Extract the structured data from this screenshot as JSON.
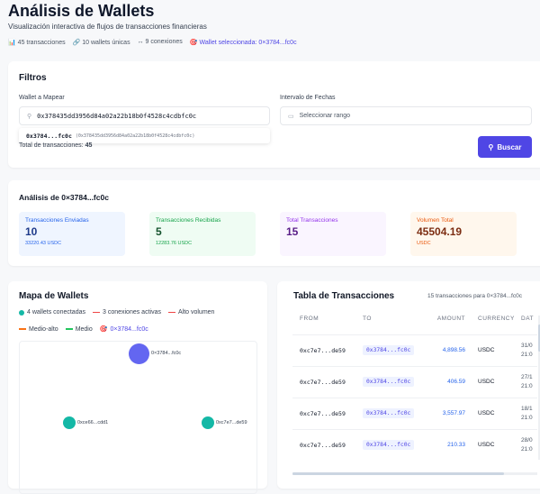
{
  "header": {
    "title": "Análisis de Wallets",
    "subtitle": "Visualización interactiva de flujos de transacciones financieras",
    "stats": [
      {
        "icon": "bar-chart-icon",
        "text": "45 transacciones"
      },
      {
        "icon": "link-icon",
        "text": "10 wallets únicas"
      },
      {
        "icon": "arrows-icon",
        "text": "9 conexiones"
      },
      {
        "icon": "target-icon",
        "text": "Wallet seleccionada: 0×3784...fc0c"
      }
    ]
  },
  "filters": {
    "title": "Filtros",
    "wallet_label": "Wallet a Mapear",
    "wallet_value": "0x378435dd3956d84a02a22b18b0f4528c4cdbfc0c",
    "suggestion_short": "0x3784...fc0c",
    "suggestion_full": "(0x378435dd3956d84a02a22b18b0f4528c4cdbfc0c)",
    "date_label": "Intervalo de Fechas",
    "date_placeholder": "Seleccionar rango",
    "total_label": "Total de transacciones:",
    "total_value": "45",
    "search_button": "Buscar"
  },
  "analysis": {
    "title": "Análisis de 0×3784...fc0c",
    "cards": [
      {
        "title": "Transacciones Enviadas",
        "value": "10",
        "sub": "33220.43 USDC"
      },
      {
        "title": "Transacciones Recibidas",
        "value": "5",
        "sub": "12283.76 USDC"
      },
      {
        "title": "Total Transacciones",
        "value": "15",
        "sub": ""
      },
      {
        "title": "Volumen Total",
        "value": "45504.19",
        "sub": "USDC"
      }
    ]
  },
  "map": {
    "title": "Mapa de Wallets",
    "legend": {
      "wallets": "4 wallets conectadas",
      "connections": "3 conexiones activas",
      "high": "Alto volumen",
      "midhigh": "Medio-alto",
      "mid": "Medio",
      "selected": "0×3784...fc0c"
    },
    "nodes": [
      {
        "label": "0×3784...fc0c",
        "color": "#6366f1"
      },
      {
        "label": "0xce66...cdd1",
        "color": "#14b8a6"
      },
      {
        "label": "0xc7e7...de59",
        "color": "#14b8a6"
      }
    ]
  },
  "table": {
    "title": "Tabla de Transacciones",
    "count": "15 transacciones para 0×3784...fc0c",
    "columns": [
      "FROM",
      "TO",
      "AMOUNT",
      "CURRENCY",
      "DAT"
    ],
    "rows": [
      {
        "from": "0xc7e7...de59",
        "to": "0x3784...fc0c",
        "amount": "4,898.56",
        "currency": "USDC",
        "date": "31/0",
        "time": "21:0"
      },
      {
        "from": "0xc7e7...de59",
        "to": "0x3784...fc0c",
        "amount": "406.59",
        "currency": "USDC",
        "date": "27/1",
        "time": "21:0"
      },
      {
        "from": "0xc7e7...de59",
        "to": "0x3784...fc0c",
        "amount": "3,557.97",
        "currency": "USDC",
        "date": "18/1",
        "time": "21:0"
      },
      {
        "from": "0xc7e7...de59",
        "to": "0x3784...fc0c",
        "amount": "210.33",
        "currency": "USDC",
        "date": "28/0",
        "time": "21:0"
      }
    ]
  },
  "colors": {
    "accent": "#4f46e5",
    "teal": "#14b8a6",
    "high": "#ef4444",
    "midhigh": "#f97316",
    "mid": "#22c55e"
  }
}
